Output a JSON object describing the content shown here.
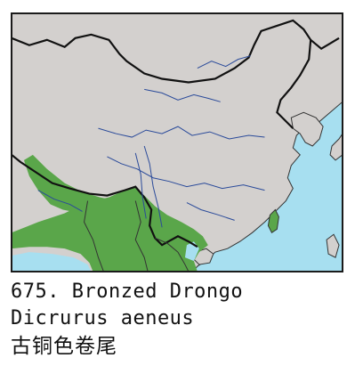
{
  "species": {
    "number": "675.",
    "english_name": "Bronzed Drongo",
    "scientific_name": "Dicrurus aeneus",
    "chinese_name": "古铜色卷尾"
  },
  "map": {
    "colors": {
      "sea": "#a7dff0",
      "land": "#d3d0ce",
      "range": "#5aa64a",
      "border": "#1a1a1a",
      "river": "#2a4a9a"
    }
  }
}
